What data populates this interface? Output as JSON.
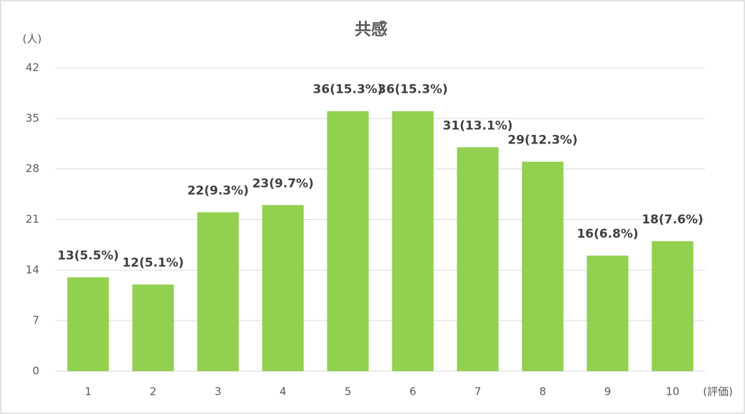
{
  "chart_data": {
    "type": "bar",
    "title": "共感",
    "y_label": "(人)",
    "x_label": "(評価)",
    "categories": [
      "1",
      "2",
      "3",
      "4",
      "5",
      "6",
      "7",
      "8",
      "9",
      "10"
    ],
    "values": [
      13,
      12,
      22,
      23,
      36,
      36,
      31,
      29,
      16,
      18
    ],
    "value_labels": [
      "13(5.5%)",
      "12(5.1%)",
      "22(9.3%)",
      "23(9.7%)",
      "36(15.3%)",
      "36(15.3%)",
      "31(13.1%)",
      "29(12.3%)",
      "16(6.8%)",
      "18(7.6%)"
    ],
    "color": "#92d050",
    "ylim": [
      0,
      42
    ],
    "yticks": [
      0,
      7,
      14,
      21,
      28,
      35,
      42
    ],
    "grid": true
  }
}
